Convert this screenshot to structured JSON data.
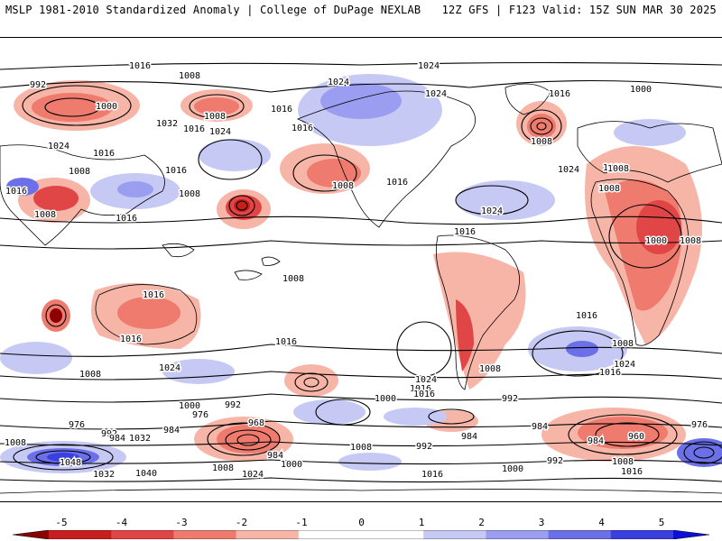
{
  "header": {
    "left_title": "MSLP 1981-2010 Standardized Anomaly | College of DuPage NEXLAB",
    "right_title": "12Z GFS | F123 Valid: 15Z SUN MAR 30 2025"
  },
  "colorbar": {
    "ticks": [
      "-5",
      "-4",
      "-3",
      "-2",
      "-1",
      "0",
      "1",
      "2",
      "3",
      "4",
      "5"
    ],
    "colors": [
      "#8b0000",
      "#c81e1e",
      "#e04646",
      "#ee7b6e",
      "#f7b5a8",
      "#ffffff",
      "#ffffff",
      "#c7c9f5",
      "#9b9ef0",
      "#6c70e8",
      "#3a3fe0",
      "#0a10d8"
    ]
  },
  "contour_labels": [
    {
      "text": "1016"
    },
    {
      "text": "1008"
    },
    {
      "text": "1024"
    },
    {
      "text": "1000"
    },
    {
      "text": "992"
    },
    {
      "text": "1000"
    },
    {
      "text": "1008"
    },
    {
      "text": "1032"
    },
    {
      "text": "1024"
    },
    {
      "text": "1024"
    },
    {
      "text": "1016"
    },
    {
      "text": "1016"
    },
    {
      "text": "1024"
    },
    {
      "text": "1016"
    },
    {
      "text": "1016"
    },
    {
      "text": "1008"
    },
    {
      "text": "1024"
    },
    {
      "text": "1016"
    },
    {
      "text": "1008"
    },
    {
      "text": "1016"
    },
    {
      "text": "1016"
    },
    {
      "text": "1016"
    },
    {
      "text": "1024"
    },
    {
      "text": "1016"
    },
    {
      "text": "1008"
    },
    {
      "text": "1008"
    },
    {
      "text": "1016"
    },
    {
      "text": "1024"
    },
    {
      "text": "1008"
    },
    {
      "text": "1000"
    },
    {
      "text": "1008"
    },
    {
      "text": "1008"
    },
    {
      "text": "1008"
    },
    {
      "text": "1016"
    },
    {
      "text": "1016"
    },
    {
      "text": "1008"
    },
    {
      "text": "1016"
    },
    {
      "text": "1016"
    },
    {
      "text": "1008"
    },
    {
      "text": "1024"
    },
    {
      "text": "1008"
    },
    {
      "text": "1024"
    },
    {
      "text": "1016"
    },
    {
      "text": "1008"
    },
    {
      "text": "1024"
    },
    {
      "text": "1016"
    },
    {
      "text": "1016"
    },
    {
      "text": "1000"
    },
    {
      "text": "992"
    },
    {
      "text": "984"
    },
    {
      "text": "1000"
    },
    {
      "text": "992"
    },
    {
      "text": "976"
    },
    {
      "text": "968"
    },
    {
      "text": "984"
    },
    {
      "text": "976"
    },
    {
      "text": "992"
    },
    {
      "text": "1032"
    },
    {
      "text": "984"
    },
    {
      "text": "1048"
    },
    {
      "text": "1008"
    },
    {
      "text": "1040"
    },
    {
      "text": "1032"
    },
    {
      "text": "984"
    },
    {
      "text": "1000"
    },
    {
      "text": "1024"
    },
    {
      "text": "1008"
    },
    {
      "text": "1008"
    },
    {
      "text": "992"
    },
    {
      "text": "984"
    },
    {
      "text": "992"
    },
    {
      "text": "1000"
    },
    {
      "text": "1016"
    },
    {
      "text": "984"
    },
    {
      "text": "960"
    },
    {
      "text": "976"
    },
    {
      "text": "1008"
    },
    {
      "text": "1016"
    },
    {
      "text": "1008"
    }
  ]
}
